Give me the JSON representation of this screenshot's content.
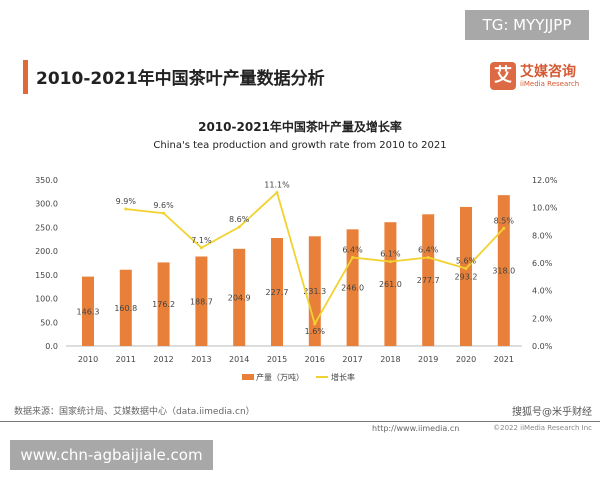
{
  "watermark_top": "TG: MYYJJPP",
  "page_title": "2010-2021年中国茶叶产量数据分析",
  "logo": {
    "cn": "艾媒咨询",
    "en": "iiMedia Research",
    "mark": "艾"
  },
  "footer": {
    "source": "数据来源：国家统计局、艾媒数据中心（data.iimedia.cn）",
    "url": "http://www.iimedia.cn",
    "watermark": "搜狐号@米乎财经",
    "copyright": "©2022 iiMedia Research Inc"
  },
  "watermark_bottom": "www.chn-agbaijiale.com",
  "colors": {
    "bar": "#e8803a",
    "line": "#f2d230",
    "accent": "#e2683a"
  },
  "chart_data": {
    "type": "bar+line",
    "title": "2010-2021年中国茶叶产量及增长率",
    "subtitle": "China's tea production and growth rate from 2010 to 2021",
    "categories": [
      "2010",
      "2011",
      "2012",
      "2013",
      "2014",
      "2015",
      "2016",
      "2017",
      "2018",
      "2019",
      "2020",
      "2021"
    ],
    "series": [
      {
        "name": "产量（万吨）",
        "type": "bar",
        "axis": "left",
        "values": [
          146.3,
          160.8,
          176.2,
          188.7,
          204.9,
          227.7,
          231.3,
          246.0,
          261.0,
          277.7,
          293.2,
          318.0
        ],
        "labels": [
          "146.3",
          "160.8",
          "176.2",
          "188.7",
          "204.9",
          "227.7",
          "231.3",
          "246.0",
          "261.0",
          "277.7",
          "293.2",
          "318.0"
        ]
      },
      {
        "name": "增长率",
        "type": "line",
        "axis": "right",
        "values": [
          null,
          9.9,
          9.6,
          7.1,
          8.6,
          11.1,
          1.6,
          6.4,
          6.1,
          6.4,
          5.6,
          8.5
        ],
        "labels": [
          "",
          "9.9%",
          "9.6%",
          "7.1%",
          "8.6%",
          "11.1%",
          "1.6%",
          "6.4%",
          "6.1%",
          "6.4%",
          "5.6%",
          "8.5%"
        ]
      }
    ],
    "ylim": [
      0,
      350
    ],
    "yticks": [
      "0.0",
      "50.0",
      "100.0",
      "150.0",
      "200.0",
      "250.0",
      "300.0",
      "350.0"
    ],
    "y2lim": [
      0,
      12
    ],
    "y2ticks": [
      "0.0%",
      "2.0%",
      "4.0%",
      "6.0%",
      "8.0%",
      "10.0%",
      "12.0%"
    ],
    "grid": false,
    "legend": "bottom"
  }
}
